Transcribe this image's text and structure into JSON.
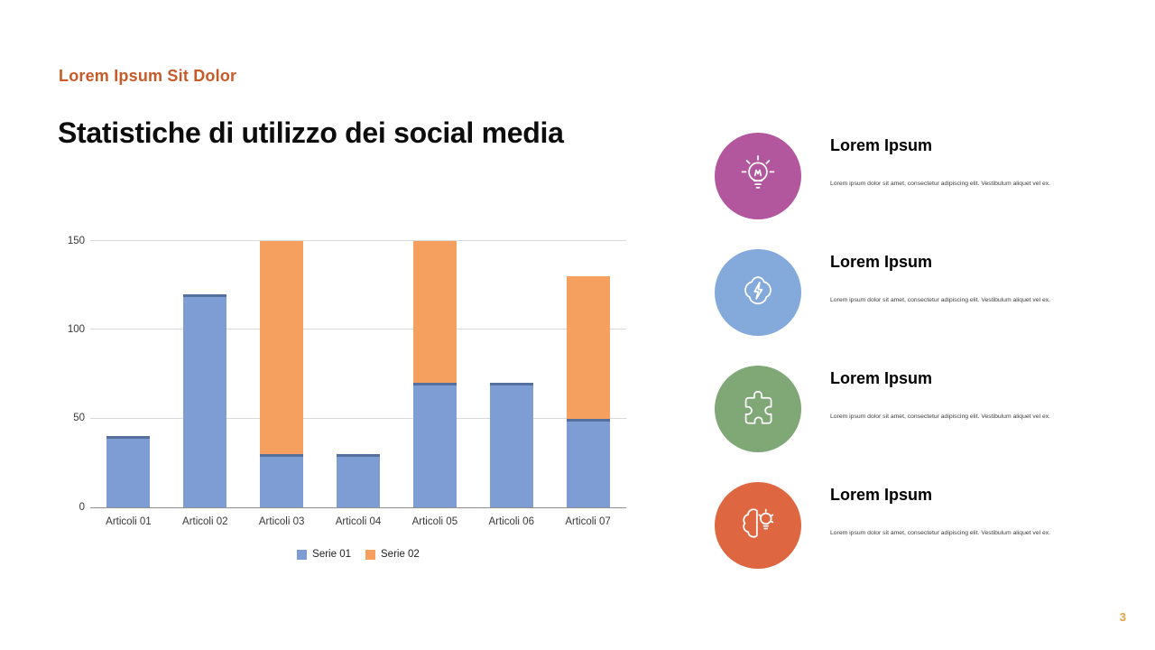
{
  "page": {
    "kicker": "Lorem Ipsum Sit Dolor",
    "title": "Statistiche di utilizzo dei social media",
    "page_number": "3"
  },
  "colors": {
    "accent_orange": "#C75B28",
    "page_number_orange": "#E8A13C",
    "serie1_blue": "#7D9DD4",
    "serie2_orange": "#F5A05F",
    "grid_gray": "#D9D9D9"
  },
  "chart_data": {
    "type": "bar",
    "stacked": true,
    "title": "",
    "xlabel": "",
    "ylabel": "",
    "categories": [
      "Articoli 01",
      "Articoli 02",
      "Articoli 03",
      "Articoli 04",
      "Articoli 05",
      "Articoli 06",
      "Articoli 07"
    ],
    "series": [
      {
        "name": "Serie 01",
        "color": "#7D9DD4",
        "values": [
          40,
          120,
          30,
          30,
          70,
          70,
          50
        ]
      },
      {
        "name": "Serie 02",
        "color": "#F5A05F",
        "values": [
          0,
          0,
          120,
          0,
          80,
          0,
          80
        ]
      }
    ],
    "ylim": [
      0,
      150
    ],
    "yticks": [
      0,
      50,
      100,
      150
    ],
    "grid": true,
    "legend_position": "bottom"
  },
  "features": [
    {
      "title": "Lorem Ipsum",
      "description": "Lorem ipsum dolor sit amet, consectetur adipiscing elit. Vestibulum aliquet vel ex.",
      "color": "#B2579E",
      "icon": "idea-head-icon"
    },
    {
      "title": "Lorem Ipsum",
      "description": "Lorem ipsum dolor sit amet, consectetur adipiscing elit. Vestibulum aliquet vel ex.",
      "color": "#84A9DB",
      "icon": "brainstorm-icon"
    },
    {
      "title": "Lorem Ipsum",
      "description": "Lorem ipsum dolor sit amet, consectetur adipiscing elit. Vestibulum aliquet vel ex.",
      "color": "#80A877",
      "icon": "puzzle-icon"
    },
    {
      "title": "Lorem Ipsum",
      "description": "Lorem ipsum dolor sit amet, consectetur adipiscing elit. Vestibulum aliquet vel ex.",
      "color": "#DE6742",
      "icon": "creative-brain-icon"
    }
  ]
}
